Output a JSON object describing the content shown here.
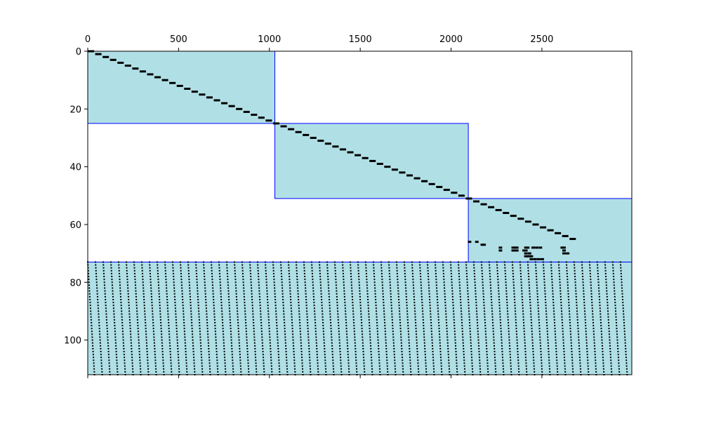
{
  "chart_data": {
    "type": "spy",
    "title": "",
    "xlabel": "",
    "ylabel": "",
    "xlim": [
      0,
      2995
    ],
    "ylim": [
      112,
      0
    ],
    "x_ticks": [
      0,
      500,
      1000,
      1500,
      2000,
      2500
    ],
    "y_ticks": [
      0,
      20,
      40,
      60,
      80,
      100
    ],
    "x_tick_position": "top",
    "grid": false,
    "colors": {
      "block_fill": "#b0e0e6",
      "block_edge": "#0000ff",
      "marker": "#000000",
      "axes": "#000000"
    },
    "blocks": [
      {
        "x0": 0,
        "x1": 1030,
        "y0": 0,
        "y1": 25
      },
      {
        "x0": 1030,
        "x1": 2095,
        "y0": 25,
        "y1": 51
      },
      {
        "x0": 2095,
        "x1": 2995,
        "y0": 51,
        "y1": 73
      },
      {
        "x0": 0,
        "x1": 2995,
        "y0": 73,
        "y1": 112
      }
    ],
    "diagonal": {
      "from_row": 0,
      "to_row": 65,
      "col_step": 40.8,
      "segment_width": 35
    },
    "sparse_points": [
      [
        2100,
        66
      ],
      [
        2140,
        66
      ],
      [
        2170,
        67
      ],
      [
        2180,
        67
      ],
      [
        2270,
        68
      ],
      [
        2340,
        68
      ],
      [
        2350,
        68
      ],
      [
        2360,
        68
      ],
      [
        2410,
        68
      ],
      [
        2420,
        68
      ],
      [
        2450,
        68
      ],
      [
        2470,
        68
      ],
      [
        2490,
        68
      ],
      [
        2610,
        68
      ],
      [
        2620,
        68
      ],
      [
        2270,
        69
      ],
      [
        2340,
        69
      ],
      [
        2350,
        69
      ],
      [
        2360,
        69
      ],
      [
        2400,
        69
      ],
      [
        2410,
        69
      ],
      [
        2620,
        69
      ],
      [
        2620,
        70
      ],
      [
        2410,
        70
      ],
      [
        2430,
        70
      ],
      [
        2640,
        70
      ],
      [
        2410,
        71
      ],
      [
        2420,
        71
      ],
      [
        2430,
        71
      ],
      [
        2440,
        71
      ],
      [
        2440,
        72
      ],
      [
        2460,
        72
      ],
      [
        2480,
        72
      ],
      [
        2500,
        72
      ]
    ],
    "dense_region": {
      "row_start": 73,
      "row_end": 112,
      "column_count": 70,
      "column_spacing": 42.5,
      "drift_per_row": 0.95
    }
  }
}
